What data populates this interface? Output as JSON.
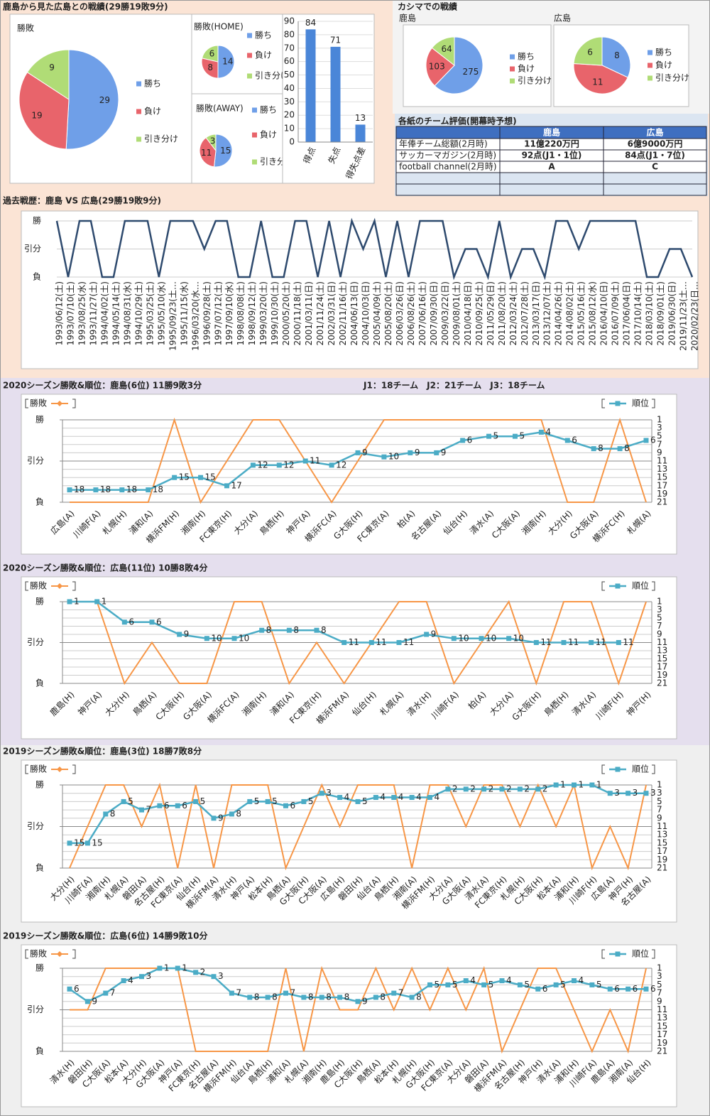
{
  "headings": {
    "main": "鹿島から見た広島との戦績(29勝19敗9分)",
    "kashima": "カシマでの戦績"
  },
  "table": {
    "title": "各紙のチーム評価(開幕時予想)",
    "columns": [
      "鹿島",
      "広島"
    ],
    "rows": [
      [
        "年俸チーム総額(2月時)",
        "11億220万円",
        "6億9000万円"
      ],
      [
        "サッカーマガジン(2月時)",
        "92点(J1・1位)",
        "84点(J1・7位)"
      ],
      [
        "football channel(2月時)",
        "A",
        "C"
      ]
    ]
  },
  "chart_data": [
    {
      "type": "pie",
      "title": "勝敗",
      "categories": [
        "勝ち",
        "負け",
        "引き分け"
      ],
      "values": [
        29,
        19,
        9
      ],
      "colors": [
        "#6f9fe8",
        "#e8646b",
        "#b0dc76"
      ]
    },
    {
      "type": "pie",
      "title": "勝敗(HOME)",
      "categories": [
        "勝ち",
        "負け",
        "引き分け"
      ],
      "values": [
        14,
        8,
        6
      ],
      "colors": [
        "#6f9fe8",
        "#e8646b",
        "#b0dc76"
      ]
    },
    {
      "type": "pie",
      "title": "勝敗(AWAY)",
      "categories": [
        "勝ち",
        "負け",
        "引き分け"
      ],
      "values": [
        15,
        11,
        3
      ],
      "colors": [
        "#6f9fe8",
        "#e8646b",
        "#b0dc76"
      ]
    },
    {
      "type": "bar",
      "categories": [
        "得点",
        "失点",
        "得失点差"
      ],
      "values": [
        84,
        71,
        13
      ],
      "color": "#4a86d8",
      "ylim": [
        0,
        90
      ],
      "yticks": [
        0,
        10,
        20,
        30,
        40,
        50,
        60,
        70,
        80,
        90
      ],
      "grid": true
    },
    {
      "type": "pie",
      "title": "鹿島",
      "categories": [
        "勝ち",
        "負け",
        "引き分け"
      ],
      "values": [
        275,
        103,
        64
      ],
      "colors": [
        "#6f9fe8",
        "#e8646b",
        "#b0dc76"
      ]
    },
    {
      "type": "pie",
      "title": "広島",
      "categories": [
        "勝ち",
        "負け",
        "引き分け"
      ],
      "values": [
        8,
        11,
        6
      ],
      "colors": [
        "#6f9fe8",
        "#e8646b",
        "#b0dc76"
      ]
    },
    {
      "type": "line",
      "title": "過去戦歴：鹿島 VS 広島(29勝19敗9分)",
      "color": "#2e4a6e",
      "categories": [
        "1993/06/12(土)",
        "1993/07/10(土)",
        "1993/08/25(水)",
        "1993/11/27(土)",
        "1994/04/02(土)",
        "1994/05/14(土)",
        "1994/08/31(水)",
        "1994/10/29(土)",
        "1995/03/25(土)",
        "1995/05/10(水)",
        "1995/09/23(土…",
        "1995/11/15(水)",
        "1996/03/20(水…",
        "1996/09/28(土)",
        "1997/07/12(土)",
        "1997/09/10(水)",
        "1998/08/08(土)",
        "1998/09/12(土)",
        "1999/03/20(土)",
        "1999/10/30(土)",
        "2000/05/20(土)",
        "2000/11/18(土)",
        "2001/03/11(日)",
        "2001/11/24(土)",
        "2002/03/31(日)",
        "2002/11/16(土)",
        "2004/06/13(日)",
        "2004/10/03(日)",
        "2005/04/09(土)",
        "2005/08/20(土)",
        "2006/03/26(日)",
        "2006/08/26(土)",
        "2007/06/16(土)",
        "2007/09/30(日)",
        "2009/03/22(日)",
        "2009/08/01(土)",
        "2010/04/18(日)",
        "2010/09/25(土)",
        "2011/05/29(日)",
        "2011/08/20(土)",
        "2012/03/24(土)",
        "2012/07/28(土)",
        "2013/03/17(日)",
        "2013/12/07(土)",
        "2014/04/26(土)",
        "2014/08/02(土)",
        "2015/05/16(土)",
        "2015/08/12(水)",
        "2016/04/10(日)",
        "2016/07/09(土)",
        "2017/06/04(日)",
        "2017/10/14(土)",
        "2018/03/10(土)",
        "2018/09/01(土)",
        "2019/06/30(日)",
        "2019/11/23(土…",
        "2020/02/23(日…"
      ],
      "values": [
        2,
        0,
        2,
        2,
        0,
        0,
        2,
        2,
        2,
        0,
        2,
        2,
        2,
        1,
        2,
        2,
        0,
        0,
        2,
        0,
        0,
        2,
        2,
        0,
        2,
        0,
        2,
        1,
        2,
        0,
        2,
        0,
        2,
        2,
        2,
        0,
        1,
        1,
        0,
        2,
        0,
        1,
        1,
        0,
        2,
        2,
        1,
        2,
        2,
        2,
        2,
        2,
        0,
        0,
        1,
        1,
        0
      ],
      "ylim": [
        0,
        2
      ],
      "yticks": [
        {
          "value": 0,
          "label": "負"
        },
        {
          "value": 1,
          "label": "引分"
        },
        {
          "value": 2,
          "label": "勝"
        }
      ],
      "grid": true
    },
    {
      "type": "combo",
      "title": "2020シーズン勝敗&順位：鹿島(6位) 11勝9敗3分",
      "note": "J1：18チーム　J2：21チーム　J3：18チーム",
      "categories": [
        "広島(A)",
        "川崎F(A)",
        "札幌(H)",
        "浦和(A)",
        "横浜FM(H)",
        "湘南(H)",
        "FC東京(H)",
        "大分(A)",
        "鳥栖(H)",
        "神戸(A)",
        "横浜FC(A)",
        "G大阪(H)",
        "FC東京(A)",
        "柏(A)",
        "名古屋(A)",
        "仙台(H)",
        "清水(A)",
        "C大阪(A)",
        "湘南(H)",
        "大分(H)",
        "G大阪(A)",
        "横浜FC(H)",
        "札幌(A)"
      ],
      "series": [
        {
          "name": "勝敗",
          "color": "#f79646",
          "values": [
            0,
            0,
            0,
            0,
            2,
            0,
            1,
            2,
            2,
            1,
            0,
            1,
            2,
            2,
            2,
            2,
            2,
            2,
            2,
            0,
            0,
            2,
            0
          ]
        },
        {
          "name": "順位",
          "color": "#4bacc6",
          "axis": "y2",
          "values": [
            18,
            18,
            18,
            18,
            15,
            15,
            17,
            12,
            12,
            11,
            12,
            9,
            10,
            9,
            9,
            6,
            5,
            5,
            4,
            6,
            8,
            8,
            6
          ]
        }
      ],
      "ylim": [
        0,
        2
      ],
      "yticks": [
        {
          "value": 0,
          "label": "負"
        },
        {
          "value": 1,
          "label": "引分"
        },
        {
          "value": 2,
          "label": "勝"
        }
      ],
      "y2lim": [
        21,
        1
      ],
      "y2ticks": [
        1,
        3,
        5,
        7,
        9,
        11,
        13,
        15,
        17,
        19,
        21
      ],
      "grid": true
    },
    {
      "type": "combo",
      "title": "2020シーズン勝敗&順位：広島(11位) 10勝8敗4分",
      "categories": [
        "鹿島(H)",
        "神戸(A)",
        "大分(H)",
        "鳥栖(A)",
        "C大阪(H)",
        "G大阪(A)",
        "横浜FC(A)",
        "湘南(H)",
        "浦和(A)",
        "FC東京(H)",
        "横浜FM(A)",
        "仙台(H)",
        "札幌(A)",
        "清水(H)",
        "川崎F(A)",
        "柏(A)",
        "大分(A)",
        "G大阪(H)",
        "鳥栖(H)",
        "清水(A)",
        "川崎F(H)",
        "神戸(H)"
      ],
      "series": [
        {
          "name": "勝敗",
          "color": "#f79646",
          "values": [
            2,
            2,
            0,
            1,
            0,
            0,
            2,
            2,
            0,
            1,
            0,
            1,
            2,
            2,
            0,
            1,
            2,
            0,
            2,
            2,
            0,
            2
          ]
        },
        {
          "name": "順位",
          "color": "#4bacc6",
          "axis": "y2",
          "values": [
            1,
            1,
            6,
            6,
            9,
            10,
            10,
            8,
            8,
            8,
            11,
            11,
            11,
            9,
            10,
            10,
            10,
            11,
            11,
            11,
            11,
            null
          ]
        }
      ],
      "ylim": [
        0,
        2
      ],
      "yticks": [
        {
          "value": 0,
          "label": "負"
        },
        {
          "value": 1,
          "label": "引分"
        },
        {
          "value": 2,
          "label": "勝"
        }
      ],
      "y2lim": [
        21,
        1
      ],
      "y2ticks": [
        1,
        3,
        5,
        7,
        9,
        11,
        13,
        15,
        17,
        19,
        21
      ],
      "grid": true
    },
    {
      "type": "combo",
      "title": "2019シーズン勝敗&順位：鹿島(3位) 18勝7敗8分",
      "categories": [
        "大分(H)",
        "川崎F(A)",
        "湘南(H)",
        "札幌(A)",
        "磐田(A)",
        "名古屋(H)",
        "FC東京(A)",
        "仙台(H)",
        "横浜FM(A)",
        "清水(H)",
        "神戸(A)",
        "松本(H)",
        "鳥栖(A)",
        "G大阪(H)",
        "C大阪(A)",
        "広島(H)",
        "磐田(H)",
        "仙台(A)",
        "鳥栖(H)",
        "湘南(A)",
        "横浜FM(H)",
        "大分(A)",
        "G大阪(A)",
        "清水(A)",
        "FC東京(H)",
        "札幌(H)",
        "C大阪(H)",
        "松本(A)",
        "浦和(H)",
        "川崎F(H)",
        "広島(A)",
        "神戸(H)",
        "名古屋(A)"
      ],
      "series": [
        {
          "name": "勝敗",
          "color": "#f79646",
          "values": [
            0,
            1,
            2,
            2,
            1,
            2,
            0,
            2,
            0,
            2,
            2,
            2,
            0,
            1,
            2,
            1,
            2,
            2,
            2,
            0,
            2,
            2,
            1,
            2,
            2,
            1,
            2,
            1,
            2,
            0,
            1,
            0,
            2
          ]
        },
        {
          "name": "順位",
          "color": "#4bacc6",
          "axis": "y2",
          "values": [
            15,
            15,
            8,
            5,
            7,
            6,
            6,
            5,
            9,
            8,
            5,
            5,
            6,
            5,
            3,
            4,
            5,
            4,
            4,
            4,
            4,
            2,
            2,
            2,
            2,
            2,
            2,
            1,
            1,
            1,
            3,
            3,
            3
          ]
        }
      ],
      "ylim": [
        0,
        2
      ],
      "yticks": [
        {
          "value": 0,
          "label": "負"
        },
        {
          "value": 1,
          "label": "引分"
        },
        {
          "value": 2,
          "label": "勝"
        }
      ],
      "y2lim": [
        21,
        1
      ],
      "y2ticks": [
        1,
        3,
        5,
        7,
        9,
        11,
        13,
        15,
        17,
        19,
        21
      ],
      "grid": true
    },
    {
      "type": "combo",
      "title": "2019シーズン勝敗&順位：広島(6位) 14勝9敗10分",
      "categories": [
        "清水(H)",
        "磐田(H)",
        "C大阪(A)",
        "松本(A)",
        "大分(H)",
        "G大阪(A)",
        "神戸(A)",
        "FC東京(H)",
        "名古屋(A)",
        "横浜FM(H)",
        "仙台(A)",
        "鳥栖(H)",
        "浦和(A)",
        "札幌(A)",
        "湘南(H)",
        "鹿島(H)",
        "C大阪(H)",
        "鳥栖(A)",
        "松本(H)",
        "札幌(H)",
        "G大阪(H)",
        "FC東京(A)",
        "大分(A)",
        "磐田(A)",
        "横浜FM(A)",
        "名古屋(H)",
        "神戸(H)",
        "清水(A)",
        "浦和(H)",
        "川崎F(A)",
        "鹿島(A)",
        "湘南(A)",
        "仙台(H)"
      ],
      "series": [
        {
          "name": "勝敗",
          "color": "#f79646",
          "values": [
            1,
            1,
            2,
            2,
            2,
            2,
            2,
            0,
            0,
            0,
            0,
            0,
            2,
            0,
            2,
            1,
            1,
            2,
            1,
            2,
            1,
            2,
            1,
            2,
            0,
            1,
            2,
            2,
            1,
            0,
            1,
            0,
            2
          ]
        },
        {
          "name": "順位",
          "color": "#4bacc6",
          "axis": "y2",
          "values": [
            6,
            9,
            7,
            4,
            3,
            1,
            1,
            2,
            3,
            7,
            8,
            8,
            7,
            8,
            8,
            8,
            9,
            8,
            7,
            8,
            5,
            5,
            4,
            5,
            4,
            5,
            6,
            5,
            4,
            5,
            6,
            6,
            6
          ]
        }
      ],
      "ylim": [
        0,
        2
      ],
      "yticks": [
        {
          "value": 0,
          "label": "負"
        },
        {
          "value": 1,
          "label": "引分"
        },
        {
          "value": 2,
          "label": "勝"
        }
      ],
      "y2lim": [
        21,
        1
      ],
      "y2ticks": [
        1,
        3,
        5,
        7,
        9,
        11,
        13,
        15,
        17,
        19,
        21
      ],
      "grid": true
    }
  ]
}
